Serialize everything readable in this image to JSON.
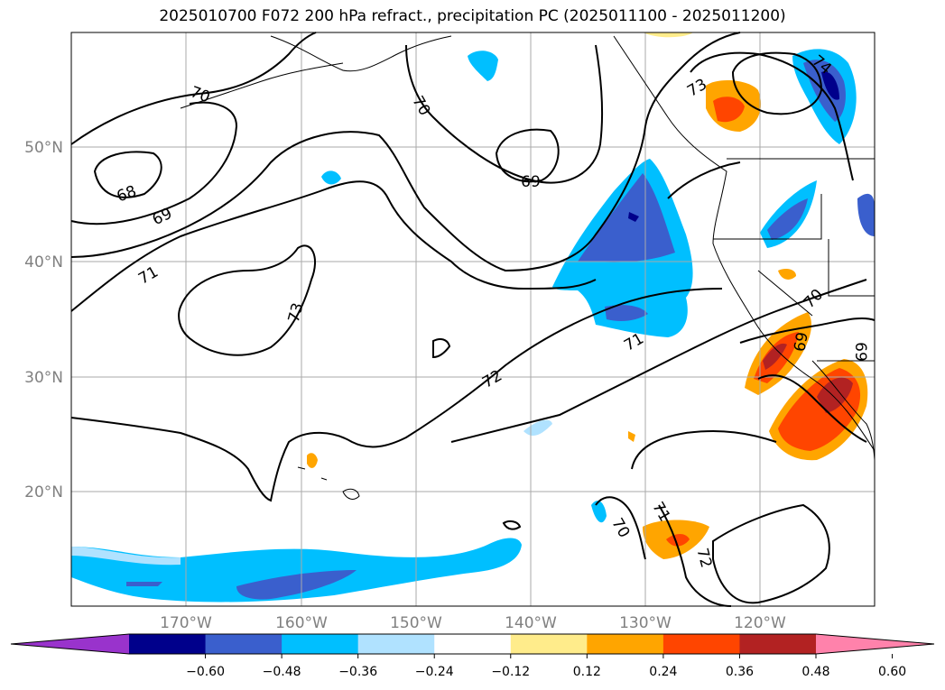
{
  "title": "2025010700 F072 200 hPa refract., precipitation PC (2025011100 - 2025011200)",
  "map": {
    "lat_labels": [
      "50°N",
      "40°N",
      "30°N",
      "20°N"
    ],
    "lon_labels": [
      "170°W",
      "160°W",
      "150°W",
      "140°W",
      "130°W",
      "120°W"
    ],
    "contour_labels": [
      "70",
      "70",
      "68",
      "69",
      "69",
      "71",
      "73",
      "72",
      "71",
      "70",
      "73",
      "74",
      "69",
      "69",
      "71",
      "70",
      "72"
    ]
  },
  "colorbar": {
    "colors": [
      "#9933cc",
      "#00008b",
      "#3a5fcd",
      "#00bfff",
      "#b0e2ff",
      "#ffffff",
      "#ffec8b",
      "#ffa500",
      "#ff4500",
      "#b22222",
      "#ff82ab"
    ],
    "ticks": [
      "−0.60",
      "−0.48",
      "−0.36",
      "−0.24",
      "−0.12",
      "0.12",
      "0.24",
      "0.36",
      "0.48",
      "0.60"
    ]
  }
}
